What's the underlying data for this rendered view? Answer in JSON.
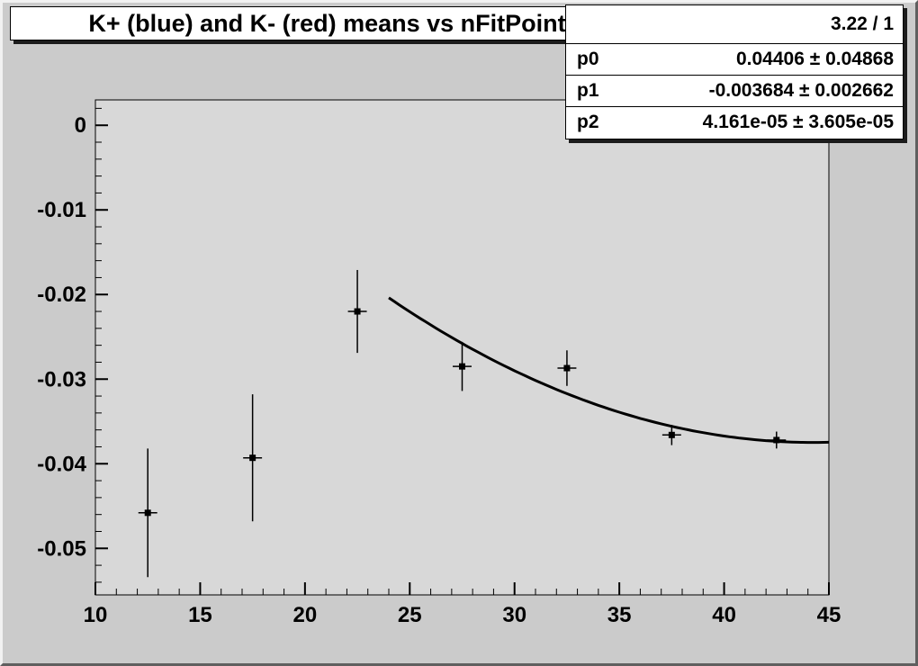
{
  "title": {
    "text": "K+ (blue) and K- (red) means vs nFitPoints"
  },
  "stats_box": {
    "chi2": "3.22 / 1",
    "rows": [
      {
        "name": "p0",
        "value": "0.04406 ± 0.04868"
      },
      {
        "name": "p1",
        "value": "-0.003684 ± 0.002662"
      },
      {
        "name": "p2",
        "value": "4.161e-05 ± 3.605e-05"
      }
    ]
  },
  "colors": {
    "canvas_bg": "#cbcbcb",
    "frame_bg": "#d8d8d8",
    "axis": "#000000",
    "marker": "#000000",
    "curve": "#000000",
    "pave_bg": "#ffffff",
    "pave_border": "#000000",
    "shadow": "#1c1c1c"
  },
  "chart_data": {
    "type": "scatter",
    "title": "K+ (blue) and K- (red) means vs nFitPoints",
    "xlabel": "",
    "ylabel": "",
    "xlim": [
      10,
      45
    ],
    "ylim": [
      -0.0555,
      0.003
    ],
    "x_ticks": [
      10,
      15,
      20,
      25,
      30,
      35,
      40,
      45
    ],
    "x_minor_step": 1,
    "y_ticks": [
      "0",
      "-0.01",
      "-0.02",
      "-0.03",
      "-0.04",
      "-0.05"
    ],
    "y_minor_step": 0.002,
    "grid": false,
    "legend": "none",
    "marker": "filled-square",
    "points": [
      {
        "x": 12.5,
        "y": -0.0458,
        "ey": 0.0076,
        "ex": 0.45
      },
      {
        "x": 17.5,
        "y": -0.0393,
        "ey": 0.0075,
        "ex": 0.45
      },
      {
        "x": 22.5,
        "y": -0.022,
        "ey": 0.0049,
        "ex": 0.45
      },
      {
        "x": 27.5,
        "y": -0.0285,
        "ey": 0.0029,
        "ex": 0.45
      },
      {
        "x": 32.5,
        "y": -0.0287,
        "ey": 0.0021,
        "ex": 0.45
      },
      {
        "x": 37.5,
        "y": -0.0366,
        "ey": 0.0012,
        "ex": 0.45
      },
      {
        "x": 42.5,
        "y": -0.0372,
        "ey": 0.001,
        "ex": 0.45
      }
    ],
    "fit": {
      "label": "pol2",
      "p0": 0.04406,
      "p1": -0.003684,
      "p2": 4.161e-05,
      "x_range": [
        24,
        45
      ],
      "chi2_ndf": "3.22 / 1",
      "p0_text": "0.04406 ± 0.04868",
      "p1_text": "-0.003684 ± 0.002662",
      "p2_text": "4.161e-05 ± 3.605e-05"
    }
  }
}
